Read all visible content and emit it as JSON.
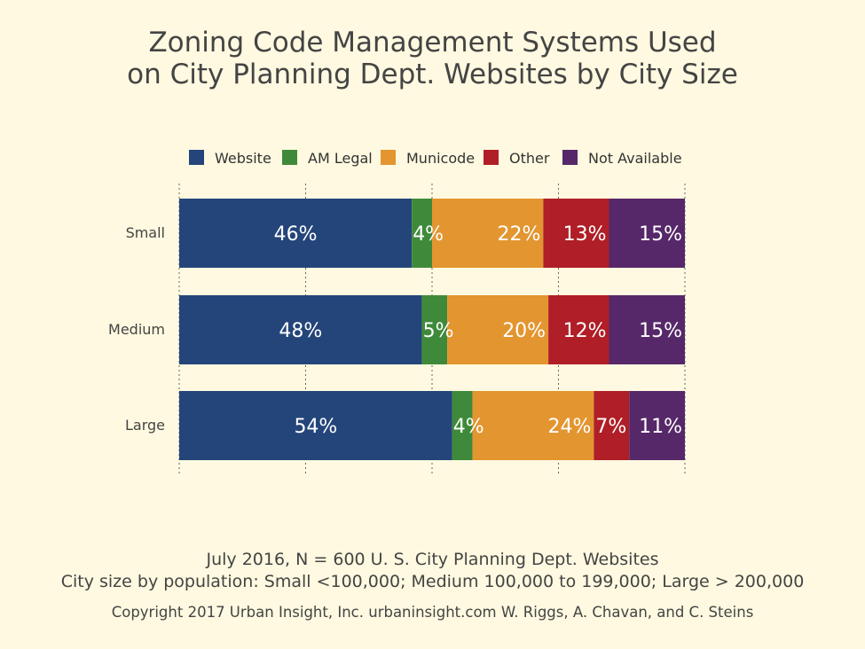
{
  "title_line1": "Zoning Code Management Systems Used",
  "title_line2": "on City Planning Dept. Websites by City Size",
  "footer_line1": "July 2016, N = 600 U. S. City Planning Dept. Websites",
  "footer_line2": "City size by population:  Small <100,000; Medium 100,000 to 199,000; Large > 200,000",
  "footer_line3": "Copyright 2017 Urban Insight, Inc. urbaninsight.com  W. Riggs, A. Chavan, and C. Steins",
  "chart_data": {
    "type": "bar",
    "orientation": "horizontal",
    "stacked": true,
    "categories": [
      "Small",
      "Medium",
      "Large"
    ],
    "series": [
      {
        "name": "Website",
        "color": "#24457a",
        "values": [
          46,
          48,
          54
        ],
        "labels": [
          "46%",
          "48%",
          "54%"
        ]
      },
      {
        "name": "AM Legal",
        "color": "#3f8a3a",
        "values": [
          4,
          5,
          4
        ],
        "labels": [
          "4%",
          "5%",
          "4%"
        ]
      },
      {
        "name": "Municode",
        "color": "#e3952f",
        "values": [
          22,
          20,
          24
        ],
        "labels": [
          "22%",
          "20%",
          "24%"
        ]
      },
      {
        "name": "Other",
        "color": "#b01e27",
        "values": [
          13,
          12,
          7
        ],
        "labels": [
          "13%",
          "12%",
          "7%"
        ]
      },
      {
        "name": "Not Available",
        "color": "#562869",
        "values": [
          15,
          15,
          11
        ],
        "labels": [
          "15%",
          "15%",
          "11%"
        ]
      }
    ],
    "xlim": [
      0,
      100
    ],
    "grid": true,
    "legend": "top"
  }
}
